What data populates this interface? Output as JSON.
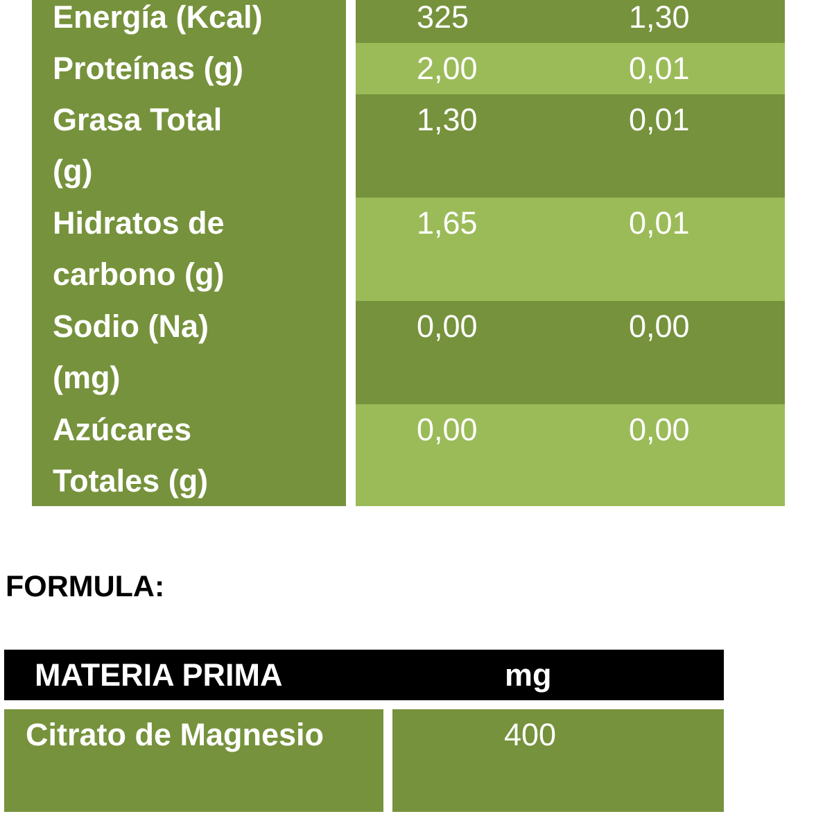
{
  "nutrition_table": {
    "rows": [
      {
        "label": "Energía (Kcal)",
        "value1": "325",
        "value2": "1,30"
      },
      {
        "label": "Proteínas (g)",
        "value1": "2,00",
        "value2": "0,01"
      },
      {
        "label": "Grasa Total (g)",
        "value1": "1,30",
        "value2": "0,01"
      },
      {
        "label": "Hidratos de carbono (g)",
        "value1": "1,65",
        "value2": "0,01"
      },
      {
        "label": "Sodio (Na) (mg)",
        "value1": "0,00",
        "value2": "0,00"
      },
      {
        "label": "Azúcares Totales (g)",
        "value1": "0,00",
        "value2": "0,00"
      }
    ]
  },
  "formula": {
    "title": "FORMULA:",
    "headers": {
      "material": "MATERIA PRIMA",
      "amount": "mg"
    },
    "rows": [
      {
        "material": "Citrato de Magnesio",
        "amount": "400"
      }
    ]
  },
  "colors": {
    "dark_green": "#76923c",
    "light_green": "#9bbb59",
    "header_black": "#000000",
    "text_white": "#ffffff"
  }
}
